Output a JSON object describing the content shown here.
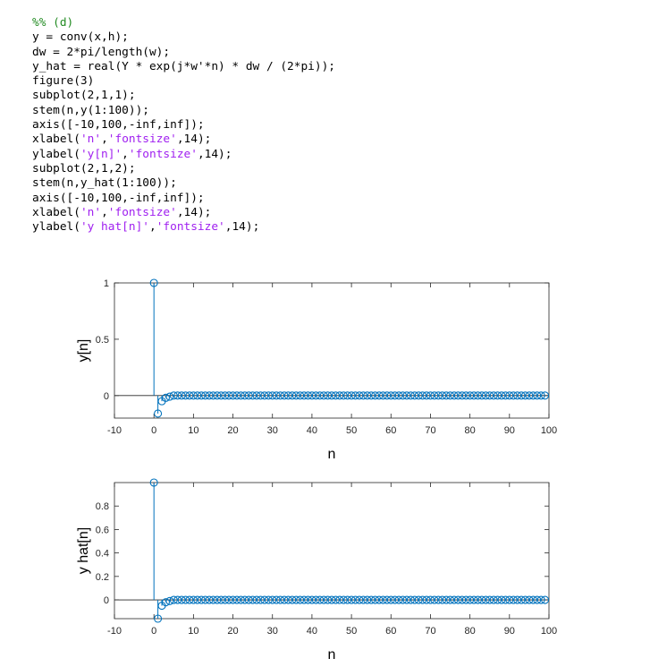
{
  "code": {
    "lines": [
      [
        {
          "t": "%% (d)",
          "k": "comment"
        }
      ],
      [
        {
          "t": "y = conv(x,h);",
          "k": "plain"
        }
      ],
      [
        {
          "t": "dw = 2*pi/length(w);",
          "k": "plain"
        }
      ],
      [
        {
          "t": "y_hat = real(Y * exp(j*w'*n) * dw / (2*pi));",
          "k": "plain"
        }
      ],
      [
        {
          "t": "figure(3)",
          "k": "plain"
        }
      ],
      [
        {
          "t": "subplot(2,1,1);",
          "k": "plain"
        }
      ],
      [
        {
          "t": "stem(n,y(1:100));",
          "k": "plain"
        }
      ],
      [
        {
          "t": "axis([-10,100,-inf,inf]);",
          "k": "plain"
        }
      ],
      [
        {
          "t": "xlabel(",
          "k": "plain"
        },
        {
          "t": "'n'",
          "k": "string"
        },
        {
          "t": ",",
          "k": "plain"
        },
        {
          "t": "'fontsize'",
          "k": "string"
        },
        {
          "t": ",14);",
          "k": "plain"
        }
      ],
      [
        {
          "t": "ylabel(",
          "k": "plain"
        },
        {
          "t": "'y[n]'",
          "k": "string"
        },
        {
          "t": ",",
          "k": "plain"
        },
        {
          "t": "'fontsize'",
          "k": "string"
        },
        {
          "t": ",14);",
          "k": "plain"
        }
      ],
      [
        {
          "t": "subplot(2,1,2);",
          "k": "plain"
        }
      ],
      [
        {
          "t": "stem(n,y_hat(1:100));",
          "k": "plain"
        }
      ],
      [
        {
          "t": "axis([-10,100,-inf,inf]);",
          "k": "plain"
        }
      ],
      [
        {
          "t": "xlabel(",
          "k": "plain"
        },
        {
          "t": "'n'",
          "k": "string"
        },
        {
          "t": ",",
          "k": "plain"
        },
        {
          "t": "'fontsize'",
          "k": "string"
        },
        {
          "t": ",14);",
          "k": "plain"
        }
      ],
      [
        {
          "t": "ylabel(",
          "k": "plain"
        },
        {
          "t": "'y hat[n]'",
          "k": "string"
        },
        {
          "t": ",",
          "k": "plain"
        },
        {
          "t": "'fontsize'",
          "k": "string"
        },
        {
          "t": ",14);",
          "k": "plain"
        }
      ]
    ]
  },
  "colors": {
    "stem": "#0072bd",
    "axes": "#262626",
    "comment": "#228b22",
    "string": "#a020f0"
  },
  "chart_data": [
    {
      "type": "stem",
      "xlabel": "n",
      "ylabel": "y[n]",
      "xlim": [
        -10,
        100
      ],
      "ylim": [
        -0.2,
        1
      ],
      "xticks": [
        -10,
        0,
        10,
        20,
        30,
        40,
        50,
        60,
        70,
        80,
        90,
        100
      ],
      "yticks": [
        0,
        0.5,
        1
      ],
      "ytick_labels": [
        "0",
        "0.5",
        "1"
      ],
      "x_start": 0,
      "x_step": 1,
      "values": [
        1,
        -0.16,
        -0.05,
        -0.02,
        -0.01,
        0,
        0,
        0,
        0,
        0,
        0,
        0,
        0,
        0,
        0,
        0,
        0,
        0,
        0,
        0,
        0,
        0,
        0,
        0,
        0,
        0,
        0,
        0,
        0,
        0,
        0,
        0,
        0,
        0,
        0,
        0,
        0,
        0,
        0,
        0,
        0,
        0,
        0,
        0,
        0,
        0,
        0,
        0,
        0,
        0,
        0,
        0,
        0,
        0,
        0,
        0,
        0,
        0,
        0,
        0,
        0,
        0,
        0,
        0,
        0,
        0,
        0,
        0,
        0,
        0,
        0,
        0,
        0,
        0,
        0,
        0,
        0,
        0,
        0,
        0,
        0,
        0,
        0,
        0,
        0,
        0,
        0,
        0,
        0,
        0,
        0,
        0,
        0,
        0,
        0,
        0,
        0,
        0,
        0,
        0
      ]
    },
    {
      "type": "stem",
      "xlabel": "n",
      "ylabel": "y hat[n]",
      "xlim": [
        -10,
        100
      ],
      "ylim": [
        -0.16,
        1
      ],
      "xticks": [
        -10,
        0,
        10,
        20,
        30,
        40,
        50,
        60,
        70,
        80,
        90,
        100
      ],
      "yticks": [
        0,
        0.2,
        0.4,
        0.6,
        0.8
      ],
      "ytick_labels": [
        "0",
        "0.2",
        "0.4",
        "0.6",
        "0.8"
      ],
      "x_start": 0,
      "x_step": 1,
      "values": [
        1,
        -0.16,
        -0.05,
        -0.02,
        -0.01,
        0,
        0,
        0,
        0,
        0,
        0,
        0,
        0,
        0,
        0,
        0,
        0,
        0,
        0,
        0,
        0,
        0,
        0,
        0,
        0,
        0,
        0,
        0,
        0,
        0,
        0,
        0,
        0,
        0,
        0,
        0,
        0,
        0,
        0,
        0,
        0,
        0,
        0,
        0,
        0,
        0,
        0,
        0,
        0,
        0,
        0,
        0,
        0,
        0,
        0,
        0,
        0,
        0,
        0,
        0,
        0,
        0,
        0,
        0,
        0,
        0,
        0,
        0,
        0,
        0,
        0,
        0,
        0,
        0,
        0,
        0,
        0,
        0,
        0,
        0,
        0,
        0,
        0,
        0,
        0,
        0,
        0,
        0,
        0,
        0,
        0,
        0,
        0,
        0,
        0,
        0,
        0,
        0,
        0,
        0
      ]
    }
  ]
}
